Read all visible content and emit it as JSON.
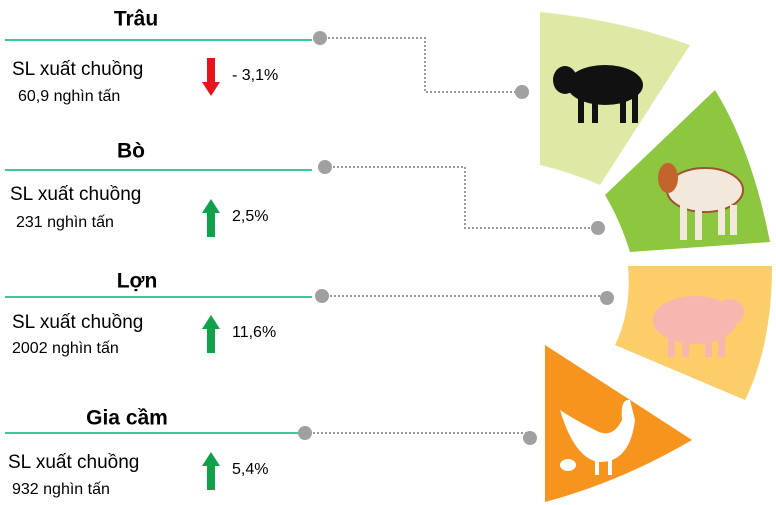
{
  "items": [
    {
      "name": "Trâu",
      "label": "SL xuất chuồng",
      "quantity": "60,9 nghìn tấn",
      "change": "- 3,1%"
    },
    {
      "name": "Bò",
      "label": "SL xuất chuồng",
      "quantity": "231 nghìn tấn",
      "change": "2,5%"
    },
    {
      "name": "Lợn",
      "label": "SL xuất chuồng",
      "quantity": "2002 nghìn tấn",
      "change": "11,6%"
    },
    {
      "name": "Gia cầm",
      "label": "SL xuất chuồng",
      "quantity": "932 nghìn tấn",
      "change": "5,4%"
    }
  ]
}
